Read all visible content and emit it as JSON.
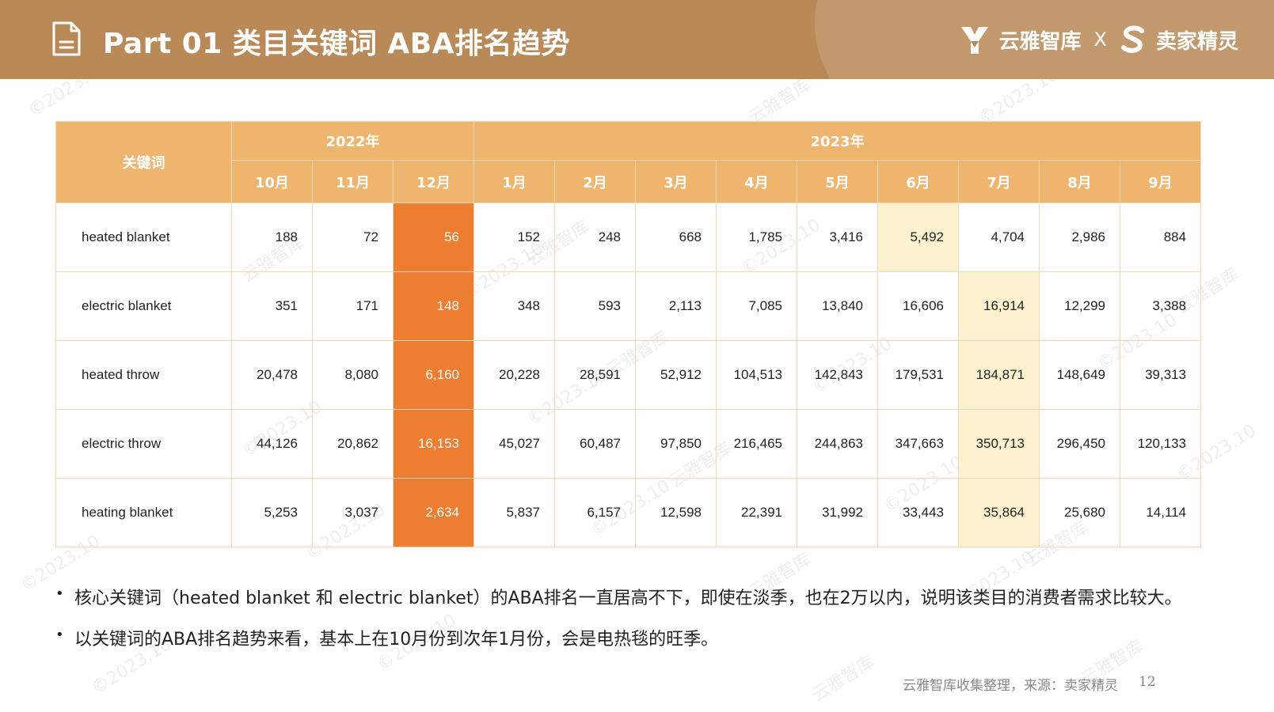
{
  "header": {
    "title": "Part 01 类目关键词 ABA排名趋势",
    "brand_left": "云雅智库",
    "brand_x": "X",
    "brand_right": "卖家精灵",
    "colors": {
      "band": "#b98a58",
      "table_header": "#efb56e",
      "highlight_orange": "#ed7d31",
      "highlight_yellow": "#fdf2cf"
    }
  },
  "table": {
    "keyword_header": "关键词",
    "year_groups": [
      "2022年",
      "2023年"
    ],
    "months": [
      "10月",
      "11月",
      "12月",
      "1月",
      "2月",
      "3月",
      "4月",
      "5月",
      "6月",
      "7月",
      "8月",
      "9月"
    ],
    "rows": [
      {
        "keyword": "heated blanket",
        "values": [
          "188",
          "72",
          "56",
          "152",
          "248",
          "668",
          "1,785",
          "3,416",
          "5,492",
          "4,704",
          "2,986",
          "884"
        ]
      },
      {
        "keyword": "electric blanket",
        "values": [
          "351",
          "171",
          "148",
          "348",
          "593",
          "2,113",
          "7,085",
          "13,840",
          "16,606",
          "16,914",
          "12,299",
          "3,388"
        ]
      },
      {
        "keyword": "heated throw",
        "values": [
          "20,478",
          "8,080",
          "6,160",
          "20,228",
          "28,591",
          "52,912",
          "104,513",
          "142,843",
          "179,531",
          "184,871",
          "148,649",
          "39,313"
        ]
      },
      {
        "keyword": "electric throw",
        "values": [
          "44,126",
          "20,862",
          "16,153",
          "45,027",
          "60,487",
          "97,850",
          "216,465",
          "244,863",
          "347,663",
          "350,713",
          "296,450",
          "120,133"
        ]
      },
      {
        "keyword": "heating blanket",
        "values": [
          "5,253",
          "3,037",
          "2,634",
          "5,837",
          "6,157",
          "12,598",
          "22,391",
          "31,992",
          "33,443",
          "35,864",
          "25,680",
          "14,114"
        ]
      }
    ]
  },
  "bullets": [
    "核心关键词（heated blanket 和 electric blanket）的ABA排名一直居高不下，即使在淡季，也在2万以内，说明该类目的消费者需求比较大。",
    "以关键词的ABA排名趋势来看，基本上在10月份到次年1月份，会是电热毯的旺季。"
  ],
  "bullet_marker": "•",
  "footer": {
    "source": "云雅智库收集整理，来源：卖家精灵",
    "page_number": "12"
  },
  "watermark": {
    "text_a": "©2023.10",
    "text_b": "云雅智库"
  }
}
